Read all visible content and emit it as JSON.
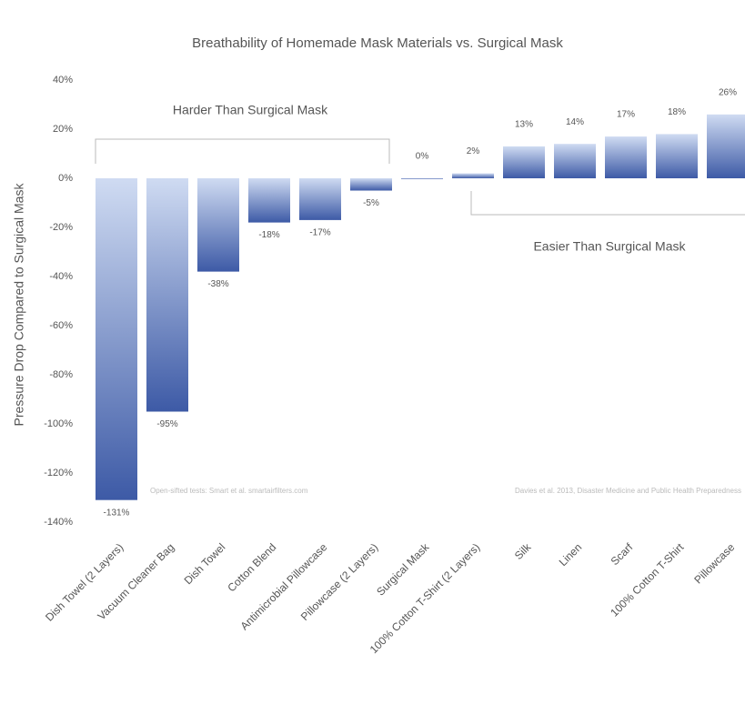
{
  "chart_data": {
    "type": "bar",
    "title": "Breathability of Homemade Mask Materials vs. Surgical Mask",
    "y_label": "Pressure Drop Compared to Surgical Mask",
    "categories": [
      "Dish Towel (2 Layers)",
      "Vacuum Cleaner Bag",
      "Dish Towel",
      "Cotton Blend",
      "Antimicrobial Pillowcase",
      "Pillowcase (2 Layers)",
      "Surgical Mask",
      "100% Cotton T-Shirt (2 Layers)",
      "Silk",
      "Linen",
      "Scarf",
      "100% Cotton T-Shirt",
      "Pillowcase"
    ],
    "values": [
      -131,
      -95,
      -38,
      -18,
      -17,
      -5,
      0,
      2,
      13,
      14,
      17,
      18,
      26
    ],
    "value_labels": [
      "-131%",
      "-95%",
      "-38%",
      "-18%",
      "-17%",
      "-5%",
      "0%",
      "2%",
      "13%",
      "14%",
      "17%",
      "18%",
      "26%"
    ],
    "color": "#4a68b0",
    "ylim": [
      -140,
      40
    ],
    "yticks": [
      {
        "value": 40,
        "label": "40%"
      },
      {
        "value": 20,
        "label": "20%"
      },
      {
        "value": 0,
        "label": "0%"
      },
      {
        "value": -20,
        "label": "-20%"
      },
      {
        "value": -40,
        "label": "-40%"
      },
      {
        "value": -60,
        "label": "-60%"
      },
      {
        "value": -80,
        "label": "-80%"
      },
      {
        "value": -100,
        "label": "-100%"
      },
      {
        "value": -120,
        "label": "-120%"
      },
      {
        "value": -140,
        "label": "-140%"
      }
    ],
    "annotations": [
      "Harder Than Surgical Mask",
      "Easier Than Surgical Mask",
      "Open-sifted tests: Smart et al. smartairfilters.com",
      "Davies et al. 2013, Disaster Medicine and Public Health Preparedness"
    ]
  }
}
